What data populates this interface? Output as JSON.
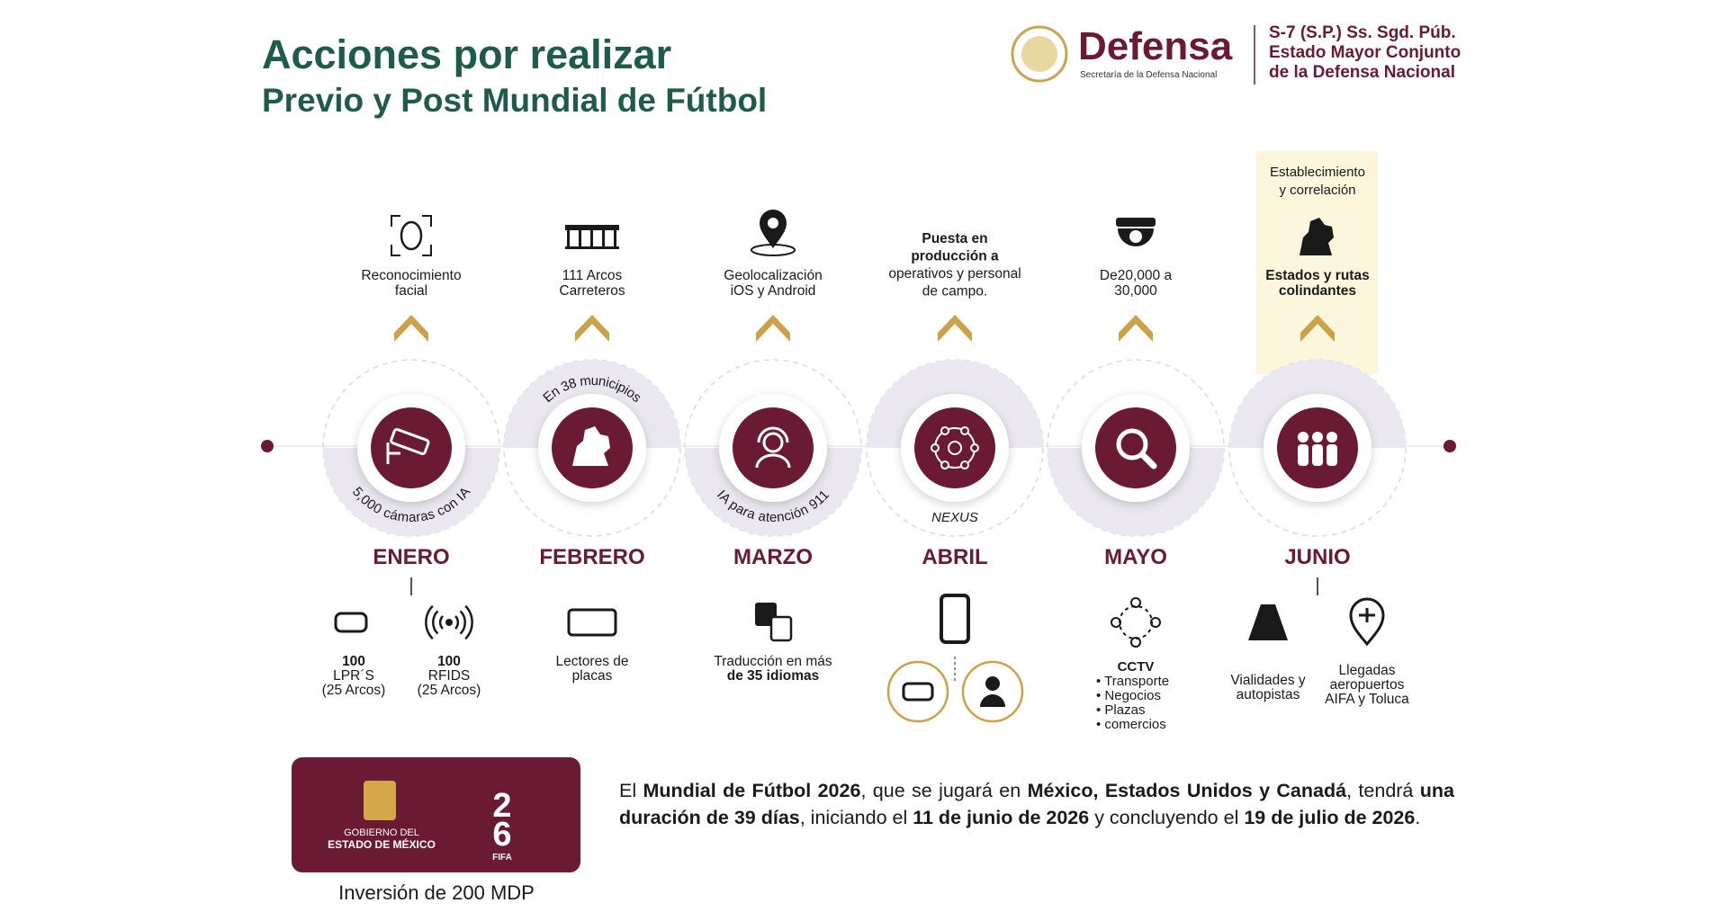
{
  "header": {
    "title": "Acciones por realizar",
    "subtitle": "Previo y Post Mundial de Fútbol",
    "logo": {
      "name": "Defensa",
      "tagline": "Secretaría de la Defensa Nacional"
    },
    "office": [
      "S-7 (S.P.) Ss. Sgd. Púb.",
      "Estado Mayor Conjunto",
      "de la Defensa Nacional"
    ]
  },
  "timeline": [
    {
      "month": "ENERO",
      "top": [
        "Reconocimiento",
        "facial"
      ],
      "ring": "5,000 cámaras con IA",
      "bottom": [
        {
          "lines": [
            {
              "t": "100",
              "b": true
            },
            "LPR´S",
            "(25 Arcos)"
          ]
        },
        {
          "lines": [
            {
              "t": "100",
              "b": true
            },
            "RFIDS",
            "(25 Arcos)"
          ]
        }
      ]
    },
    {
      "month": "FEBRERO",
      "top": [
        "111 Arcos",
        "Carreteros"
      ],
      "ring": "En 38 municipios",
      "bottom": [
        {
          "lines": [
            "Lectores de",
            "placas"
          ]
        }
      ]
    },
    {
      "month": "MARZO",
      "top": [
        "Geolocalización",
        "iOS y Android"
      ],
      "ring": "IA para atención 911",
      "bottom": [
        {
          "lines": [
            "Traducción en más",
            {
              "t": "de 35 idiomas",
              "b": true
            }
          ]
        }
      ]
    },
    {
      "month": "ABRIL",
      "top": [
        {
          "t": "Puesta en",
          "b": true
        },
        {
          "t": "producción a",
          "b": true
        },
        "operativos y personal",
        "de campo."
      ],
      "ring": "NEXUS",
      "bottom": []
    },
    {
      "month": "MAYO",
      "top": [
        "De20,000 a",
        "30,000"
      ],
      "bottom": [
        {
          "lines": [
            {
              "t": "CCTV",
              "b": true
            },
            "• Transporte",
            "• Negocios",
            "• Plazas",
            "• comercios"
          ]
        }
      ]
    },
    {
      "month": "JUNIO",
      "note": [
        "Establecimiento",
        "y correlación"
      ],
      "top": [
        {
          "t": "Estados y rutas",
          "b": true
        },
        {
          "t": "colindantes",
          "b": true
        }
      ],
      "bottom": [
        {
          "lines": [
            "Vialidades y",
            "autopistas"
          ]
        },
        {
          "lines": [
            "Llegadas",
            "aeropuertos",
            "AIFA y Toluca"
          ]
        }
      ]
    }
  ],
  "sponsor": {
    "gov": [
      "GOBIERNO DEL",
      "ESTADO DE MÉXICO"
    ],
    "cup": [
      "2",
      "6"
    ],
    "fifa": "FIFA"
  },
  "investment": "Inversión de 200 MDP",
  "paragraph": [
    "El ",
    "Mundial de Fútbol 2026",
    ", que se jugará en ",
    "México, Estados Unidos y Canadá",
    ", tendrá ",
    "una duración de 39 días",
    ", iniciando el ",
    "11 de junio de 2026",
    " y concluyendo el ",
    "19 de julio de 2026",
    "."
  ]
}
